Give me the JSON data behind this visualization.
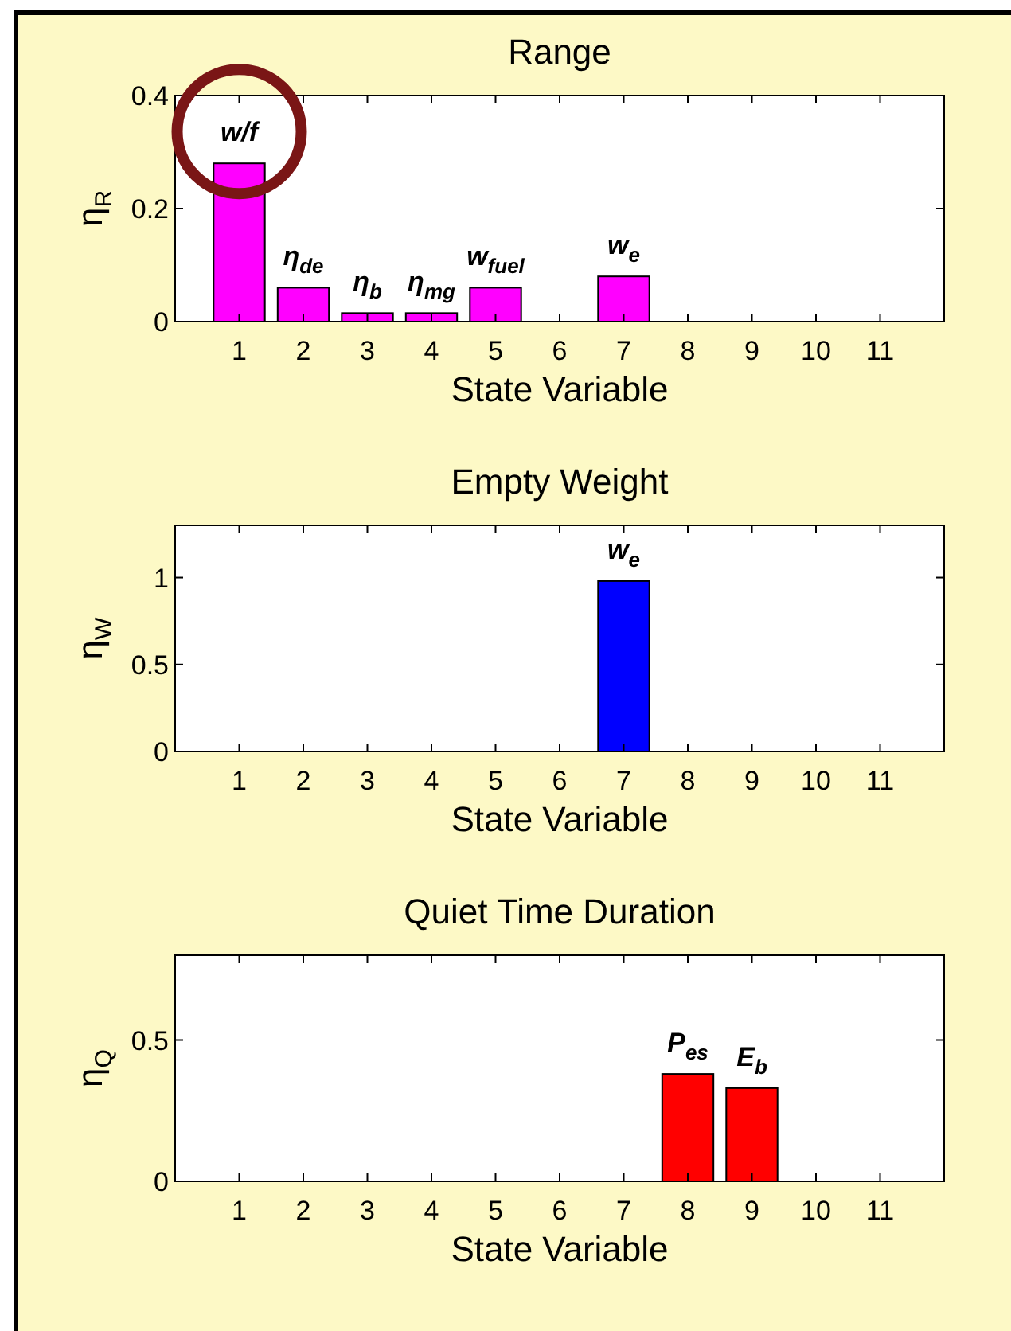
{
  "chart_data": [
    {
      "type": "bar",
      "title": "Range",
      "xlabel": "State Variable",
      "ylabel": "η$_{R}$",
      "x": [
        1,
        2,
        3,
        4,
        5,
        7
      ],
      "values": [
        0.28,
        0.06,
        0.015,
        0.015,
        0.06,
        0.08
      ],
      "color": "#ff00ff",
      "xlim": [
        0,
        12
      ],
      "xticks": [
        1,
        2,
        3,
        4,
        5,
        6,
        7,
        8,
        9,
        10,
        11
      ],
      "ylim": [
        0,
        0.4
      ],
      "yticks": [
        0,
        0.2,
        0.4
      ],
      "annotations": [
        {
          "text": "w/f",
          "x": 1,
          "y": 0.28
        },
        {
          "text": "η$_{de}$",
          "x": 2,
          "y": 0.06
        },
        {
          "text": "η$_{b}$",
          "x": 3,
          "y": 0.015
        },
        {
          "text": "η$_{mg}$",
          "x": 4,
          "y": 0.015
        },
        {
          "text": "w$_{fuel}$",
          "x": 5,
          "y": 0.06
        },
        {
          "text": "w$_{e}$",
          "x": 7,
          "y": 0.08
        }
      ]
    },
    {
      "type": "bar",
      "title": "Empty Weight",
      "xlabel": "State Variable",
      "ylabel": "η$_{W}$",
      "x": [
        7
      ],
      "values": [
        0.98
      ],
      "color": "#0000ff",
      "xlim": [
        0,
        12
      ],
      "xticks": [
        1,
        2,
        3,
        4,
        5,
        6,
        7,
        8,
        9,
        10,
        11
      ],
      "ylim": [
        0,
        1.3
      ],
      "yticks": [
        0,
        0.5,
        1
      ],
      "annotations": [
        {
          "text": "w$_{e}$",
          "x": 7,
          "y": 0.98
        }
      ]
    },
    {
      "type": "bar",
      "title": "Quiet Time Duration",
      "xlabel": "State Variable",
      "ylabel": "η$_{Q}$",
      "x": [
        8,
        9
      ],
      "values": [
        0.38,
        0.33
      ],
      "color": "#ff0000",
      "xlim": [
        0,
        12
      ],
      "xticks": [
        1,
        2,
        3,
        4,
        5,
        6,
        7,
        8,
        9,
        10,
        11
      ],
      "ylim": [
        0,
        0.8
      ],
      "yticks": [
        0,
        0.5
      ],
      "annotations": [
        {
          "text": "P$_{es}$",
          "x": 8,
          "y": 0.38
        },
        {
          "text": "E$_{b}$",
          "x": 9,
          "y": 0.33
        }
      ]
    }
  ]
}
